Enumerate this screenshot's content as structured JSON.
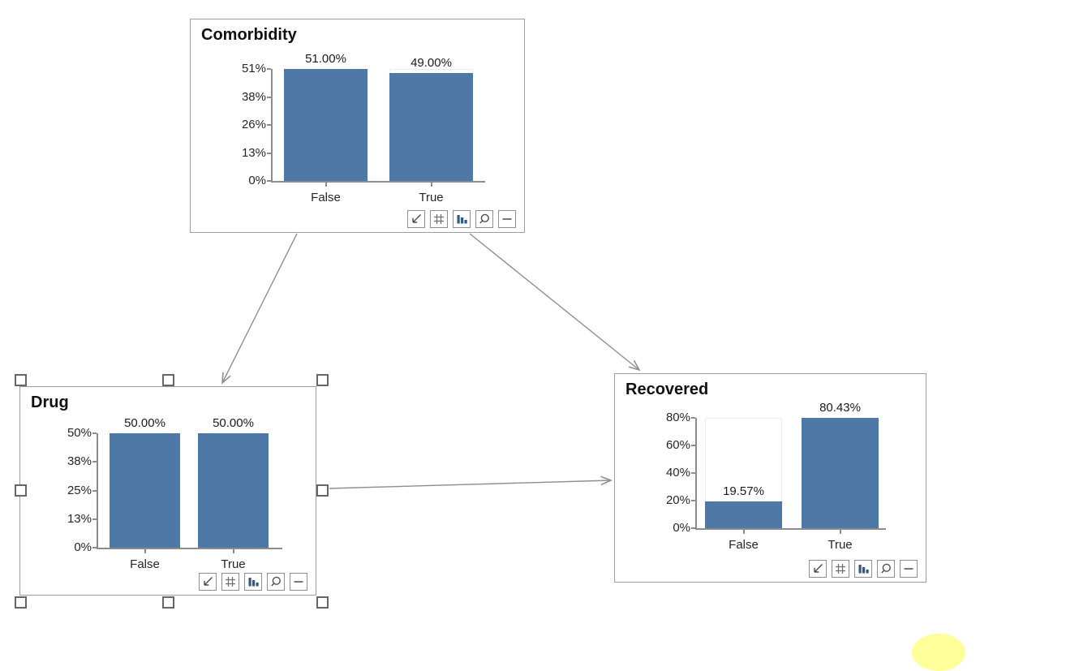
{
  "diagram": {
    "background": "#ffffff",
    "bar_color": "#4e79a7",
    "axis_color": "#8c8c8c",
    "node_border_color": "#9e9e9e",
    "edge_color": "#8f8f8f",
    "annotation_color": "#ffff99"
  },
  "nodes": [
    {
      "id": "comorbidity",
      "title": "Comorbidity",
      "categories": [
        "False",
        "True"
      ],
      "values": [
        51.0,
        49.0
      ],
      "value_labels": [
        "51.00%",
        "49.00%"
      ],
      "y_max": 51,
      "y_tick_labels": [
        "0%",
        "13%",
        "26%",
        "38%",
        "51%"
      ],
      "selected": false
    },
    {
      "id": "drug",
      "title": "Drug",
      "categories": [
        "False",
        "True"
      ],
      "values": [
        50.0,
        50.0
      ],
      "value_labels": [
        "50.00%",
        "50.00%"
      ],
      "y_max": 50,
      "y_tick_labels": [
        "0%",
        "13%",
        "25%",
        "38%",
        "50%"
      ],
      "selected": true
    },
    {
      "id": "recovered",
      "title": "Recovered",
      "categories": [
        "False",
        "True"
      ],
      "values": [
        19.57,
        80.43
      ],
      "value_labels": [
        "19.57%",
        "80.43%"
      ],
      "y_max": 80.43,
      "y_tick_labels": [
        "0%",
        "20%",
        "40%",
        "60%",
        "80%"
      ],
      "selected": false
    }
  ],
  "edges": [
    {
      "from": "Comorbidity",
      "to": "Drug"
    },
    {
      "from": "Comorbidity",
      "to": "Recovered"
    },
    {
      "from": "Drug",
      "to": "Recovered"
    }
  ],
  "node_toolbar": {
    "buttons": [
      {
        "name": "resize",
        "icon": "diagonal-arrow-icon"
      },
      {
        "name": "table",
        "icon": "grid-icon"
      },
      {
        "name": "chart",
        "icon": "bar-chart-icon"
      },
      {
        "name": "zoom",
        "icon": "magnifier-icon"
      },
      {
        "name": "collapse",
        "icon": "minus-icon"
      }
    ]
  },
  "annotation": {
    "shape": "ellipse",
    "color": "#ffff99"
  },
  "chart_data": [
    {
      "type": "bar",
      "title": "Comorbidity",
      "categories": [
        "False",
        "True"
      ],
      "values": [
        51.0,
        49.0
      ],
      "data_labels": [
        "51.00%",
        "49.00%"
      ],
      "xlabel": "",
      "ylabel": "",
      "y_ticks": [
        "0%",
        "13%",
        "26%",
        "38%",
        "51%"
      ],
      "ylim": [
        0,
        51
      ],
      "grid": false,
      "legend": false
    },
    {
      "type": "bar",
      "title": "Drug",
      "categories": [
        "False",
        "True"
      ],
      "values": [
        50.0,
        50.0
      ],
      "data_labels": [
        "50.00%",
        "50.00%"
      ],
      "xlabel": "",
      "ylabel": "",
      "y_ticks": [
        "0%",
        "13%",
        "25%",
        "38%",
        "50%"
      ],
      "ylim": [
        0,
        50
      ],
      "grid": false,
      "legend": false
    },
    {
      "type": "bar",
      "title": "Recovered",
      "categories": [
        "False",
        "True"
      ],
      "values": [
        19.57,
        80.43
      ],
      "data_labels": [
        "19.57%",
        "80.43%"
      ],
      "xlabel": "",
      "ylabel": "",
      "y_ticks": [
        "0%",
        "20%",
        "40%",
        "60%",
        "80%"
      ],
      "ylim": [
        0,
        80.43
      ],
      "grid": false,
      "legend": false
    }
  ]
}
